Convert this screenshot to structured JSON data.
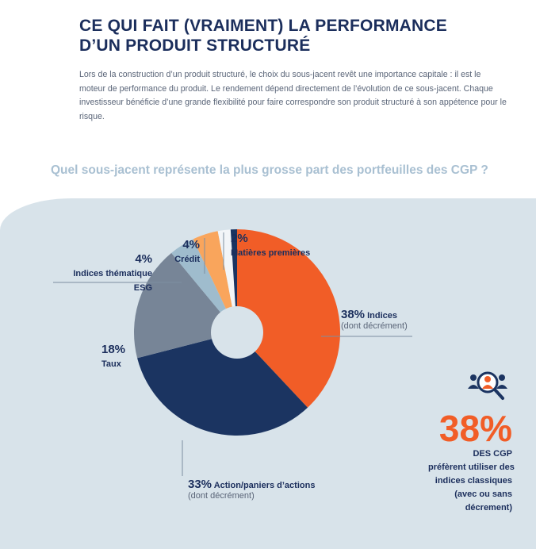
{
  "header": {
    "title_line1": "CE QUI FAIT (VRAIMENT) LA PERFORMANCE",
    "title_line2": "D’UN PRODUIT STRUCTURÉ",
    "intro": "Lors de la construction d’un produit structuré, le choix du sous-jacent revêt une importance capitale : il est le moteur de performance du produit. Le rendement dépend directement de l’évolution de ce sous-jacent. Chaque investisseur bénéficie d’une grande flexibilité pour faire correspondre son produit structuré à son appétence pour le risque."
  },
  "chart_data": {
    "type": "pie",
    "title": "Quel sous-jacent représente la plus grosse part des portfeuilles des CGP ?",
    "slices": [
      {
        "label": "Indices",
        "pct_label": "38%",
        "sub": "(dont décrément)",
        "value": 38,
        "color": "#f15d27"
      },
      {
        "label": "Action/paniers d’actions",
        "pct_label": "33%",
        "sub": "(dont décrément)",
        "value": 33,
        "color": "#1b3461"
      },
      {
        "label": "Taux",
        "pct_label": "18%",
        "value": 18,
        "color": "#778597"
      },
      {
        "label": "Indices thématique ESG",
        "pct_label": "4%",
        "value": 4,
        "color": "#9fbccd"
      },
      {
        "label": "Crédit",
        "pct_label": "4%",
        "value": 4,
        "color": "#f9a55c"
      },
      {
        "label": "Matières premières",
        "pct_label": "2%",
        "value": 2,
        "color": "#f2f5f8"
      }
    ]
  },
  "stat": {
    "icon": "user-search-icon",
    "value": "38%",
    "line1": "DES CGP",
    "line2": "préfèrent utiliser des",
    "line3": "indices classiques",
    "line4": "(avec ou sans",
    "line5": "décrement)"
  }
}
